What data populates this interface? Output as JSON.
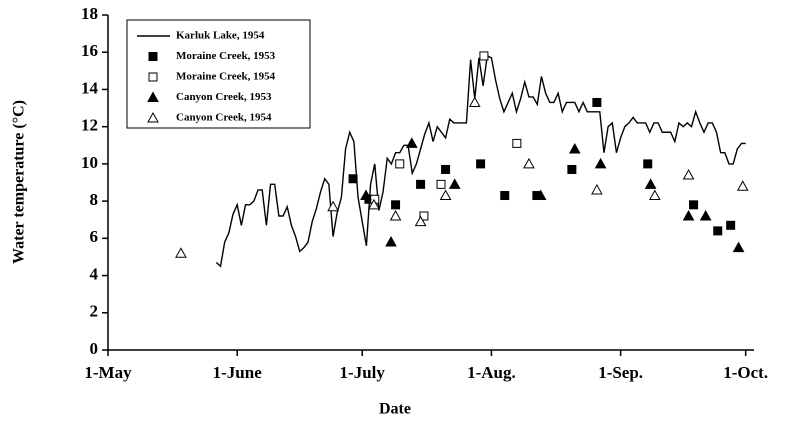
{
  "chart_data": {
    "type": "line",
    "xlabel": "Date",
    "ylabel": "Water temperature (°C)",
    "xlim": [
      0,
      155
    ],
    "ylim": [
      0,
      18
    ],
    "xticks": [
      {
        "value": 0,
        "label": "1-May"
      },
      {
        "value": 31,
        "label": "1-June"
      },
      {
        "value": 61,
        "label": "1-July"
      },
      {
        "value": 92,
        "label": "1-Aug."
      },
      {
        "value": 123,
        "label": "1-Sep."
      },
      {
        "value": 153,
        "label": "1-Oct."
      }
    ],
    "yticks": [
      0,
      2,
      4,
      6,
      8,
      10,
      12,
      14,
      16,
      18
    ],
    "legend": "upper-left",
    "series": [
      {
        "name": "Karluk Lake, 1954",
        "marker": "line",
        "color": "#000000",
        "x": [
          26,
          27,
          28,
          29,
          30,
          31,
          32,
          33,
          34,
          35,
          36,
          37,
          38,
          39,
          40,
          41,
          42,
          43,
          44,
          45,
          46,
          47,
          48,
          49,
          50,
          51,
          52,
          53,
          54,
          55,
          56,
          57,
          58,
          59,
          60,
          61,
          62,
          63,
          64,
          65,
          66,
          67,
          68,
          69,
          70,
          71,
          72,
          73,
          74,
          75,
          76,
          77,
          78,
          79,
          80,
          81,
          82,
          83,
          84,
          85,
          86,
          87,
          88,
          89,
          90,
          91,
          92,
          93,
          94,
          95,
          96,
          97,
          98,
          99,
          100,
          101,
          102,
          103,
          104,
          105,
          106,
          107,
          108,
          109,
          110,
          111,
          112,
          113,
          114,
          115,
          116,
          117,
          118,
          119,
          120,
          121,
          122,
          123,
          124,
          125,
          126,
          127,
          128,
          129,
          130,
          131,
          132,
          133,
          134,
          135,
          136,
          137,
          138,
          139,
          140,
          141,
          142,
          143,
          144,
          145,
          146,
          147,
          148,
          149,
          150,
          151,
          152,
          153
        ],
        "values": [
          4.7,
          4.5,
          5.8,
          6.3,
          7.3,
          7.8,
          6.7,
          7.8,
          7.8,
          8.0,
          8.6,
          8.6,
          6.7,
          8.9,
          8.9,
          7.2,
          7.2,
          7.7,
          6.7,
          6.1,
          5.3,
          5.5,
          5.8,
          6.9,
          7.6,
          8.5,
          9.2,
          8.9,
          6.1,
          7.4,
          8.2,
          10.8,
          11.7,
          11.2,
          8.2,
          6.9,
          5.6,
          8.9,
          10.0,
          7.5,
          8.5,
          10.3,
          10.0,
          10.6,
          10.6,
          11.0,
          11.0,
          9.5,
          10.0,
          10.8,
          11.6,
          12.2,
          11.2,
          12.0,
          11.7,
          11.4,
          12.4,
          12.2,
          12.2,
          12.2,
          12.2,
          15.6,
          13.5,
          15.7,
          14.2,
          15.8,
          15.7,
          14.5,
          13.5,
          12.8,
          13.3,
          13.8,
          12.8,
          13.5,
          14.4,
          13.6,
          13.6,
          13.2,
          14.7,
          13.8,
          13.3,
          13.3,
          13.8,
          12.8,
          13.3,
          13.3,
          13.3,
          12.8,
          13.3,
          12.8,
          12.8,
          12.8,
          12.8,
          10.6,
          12.0,
          12.2,
          10.6,
          11.4,
          12.0,
          12.2,
          12.5,
          12.2,
          12.2,
          12.2,
          11.7,
          12.2,
          12.2,
          11.7,
          11.7,
          11.7,
          11.2,
          12.2,
          12.0,
          12.2,
          12.0,
          12.8,
          12.2,
          11.7,
          12.2,
          12.2,
          11.7,
          10.6,
          10.6,
          10.0,
          10.0,
          10.8,
          11.1,
          11.1
        ]
      },
      {
        "name": "Moraine Creek, 1953",
        "marker": "square-filled",
        "color": "#000000",
        "x": [
          58.8,
          62.6,
          69,
          75,
          81,
          89.4,
          95.2,
          102.9,
          111.3,
          117.3,
          129.5,
          140.5,
          146.3,
          149.4
        ],
        "values": [
          9.2,
          8.1,
          7.8,
          8.9,
          9.7,
          10.0,
          8.3,
          8.3,
          9.7,
          13.3,
          10.0,
          7.8,
          6.4,
          6.7
        ]
      },
      {
        "name": "Moraine Creek, 1954",
        "marker": "square-open",
        "color": "#000000",
        "x": [
          64,
          70,
          75.8,
          79.9,
          90.2,
          98.1
        ],
        "values": [
          8.1,
          10.0,
          7.2,
          8.9,
          15.8,
          11.1
        ]
      },
      {
        "name": "Canyon Creek, 1953",
        "marker": "triangle-filled",
        "color": "#000000",
        "x": [
          61.9,
          67.9,
          72.9,
          83.2,
          103.8,
          112,
          118.2,
          130.2,
          139.3,
          143.4,
          151.3
        ],
        "values": [
          8.3,
          5.8,
          11.1,
          8.9,
          8.3,
          10.8,
          10.0,
          8.9,
          7.2,
          7.2,
          5.5
        ]
      },
      {
        "name": "Canyon Creek, 1954",
        "marker": "triangle-open",
        "color": "#000000",
        "x": [
          17.5,
          54,
          63.8,
          69,
          75,
          81,
          88,
          101,
          117.3,
          131.2,
          139.3,
          152.3
        ],
        "values": [
          5.2,
          7.7,
          7.8,
          7.2,
          6.9,
          8.3,
          13.3,
          10.0,
          8.6,
          8.3,
          9.4,
          8.8
        ]
      }
    ]
  }
}
